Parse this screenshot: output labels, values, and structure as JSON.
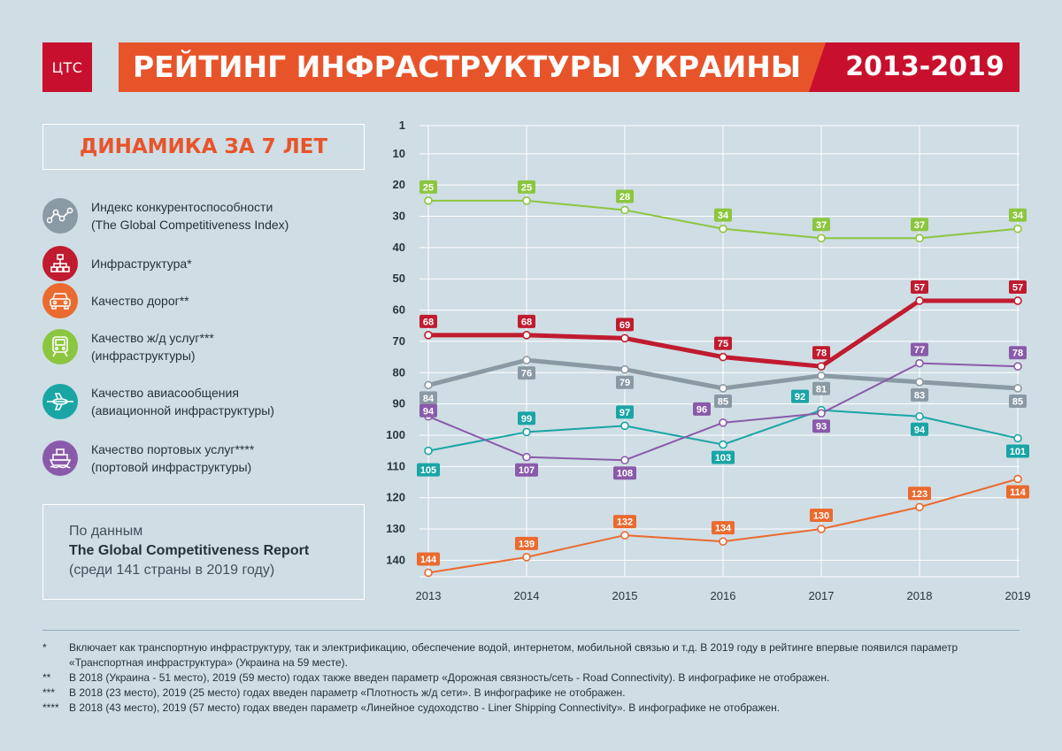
{
  "header": {
    "logo_text": "ЦТС",
    "title": "РЕЙТИНГ ИНФРАСТРУКТУРЫ УКРАИНЫ",
    "years": "2013-2019"
  },
  "subtitle": "ДИНАМИКА ЗА 7 ЛЕТ",
  "legend": [
    {
      "line1": "Индекс конкурентоспособности",
      "line2": "(The Global Competitiveness Index)",
      "color": "#8a9aa4",
      "icon": "network-nodes-icon"
    },
    {
      "line1": "Инфраструктура*",
      "line2": "",
      "color": "#c01b2f",
      "icon": "hierarchy-icon"
    },
    {
      "line1": "Качество дорог**",
      "line2": "",
      "color": "#ea6a2f",
      "icon": "car-icon"
    },
    {
      "line1": "Качество ж/д услуг***",
      "line2": "(инфраструктуры)",
      "color": "#8cc63f",
      "icon": "train-icon"
    },
    {
      "line1": "Качество авиасообщения",
      "line2": "(авиационной инфраструктуры)",
      "color": "#1aa5a5",
      "icon": "airplane-icon"
    },
    {
      "line1": "Качество портовых услуг****",
      "line2": "(портовой инфраструктуры)",
      "color": "#8a5aaa",
      "icon": "ship-icon"
    }
  ],
  "source": {
    "line1": "По данным",
    "line2": "The Global Competitiveness Report",
    "line3": "(среди 141 страны в 2019 году)"
  },
  "chart_data": {
    "type": "line",
    "x": [
      "2013",
      "2014",
      "2015",
      "2016",
      "2017",
      "2018",
      "2019"
    ],
    "y_ticks": [
      "1",
      "10",
      "20",
      "30",
      "40",
      "50",
      "60",
      "70",
      "80",
      "90",
      "100",
      "110",
      "120",
      "130",
      "140"
    ],
    "ylim": [
      1,
      144
    ],
    "y_inverted": true,
    "grid": true,
    "series": [
      {
        "key": "rail",
        "values": [
          25,
          25,
          28,
          34,
          37,
          37,
          34
        ],
        "color": "#8cc63f",
        "width": 2,
        "labels": "above"
      },
      {
        "key": "infrastructure",
        "values": [
          68,
          68,
          69,
          75,
          78,
          57,
          57
        ],
        "color": "#c01b2f",
        "width": 5,
        "labels": "above"
      },
      {
        "key": "gci",
        "values": [
          84,
          76,
          79,
          85,
          81,
          83,
          85
        ],
        "color": "#8a9aa4",
        "width": 5,
        "labels": "below"
      },
      {
        "key": "air",
        "values": [
          105,
          99,
          97,
          103,
          92,
          94,
          101
        ],
        "color": "#1aa5a5",
        "width": 2,
        "labels": "mixed"
      },
      {
        "key": "ports",
        "values": [
          94,
          107,
          108,
          96,
          93,
          77,
          78
        ],
        "color": "#8a5aaa",
        "width": 2,
        "labels": "mixed"
      },
      {
        "key": "roads",
        "values": [
          144,
          139,
          132,
          134,
          130,
          123,
          114
        ],
        "color": "#ea6a2f",
        "width": 2,
        "labels": "mixed"
      }
    ]
  },
  "footnotes": [
    {
      "mark": "*",
      "text": "Включает как транспортную инфраструктуру, так и электрификацию, обеспечение водой, интернетом, мобильной связью и т.д. В 2019 году в рейтинге впервые появился параметр «Транспортная инфраструктура» (Украина на 59 месте)."
    },
    {
      "mark": "**",
      "text": "В 2018 (Украина - 51 место), 2019 (59 место) годах также введен параметр «Дорожная связность/сеть - Road Connectivity). В инфографике не отображен."
    },
    {
      "mark": "***",
      "text": "В 2018 (23 место), 2019 (25 место) годах введен параметр «Плотность ж/д сети». В инфографике не отображен."
    },
    {
      "mark": "****",
      "text": "В 2018 (43 место), 2019 (57 место) годах введен параметр «Линейное судоходство - Liner Shipping Connectivity». В инфографике не отображен."
    }
  ]
}
